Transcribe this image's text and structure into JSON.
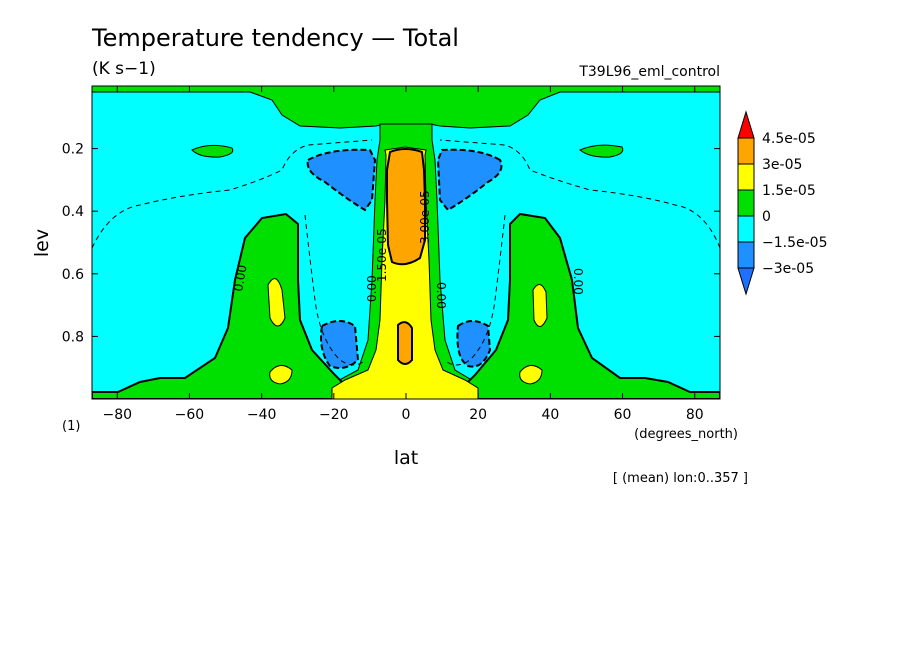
{
  "header": {
    "title": "Temperature tendency — Total",
    "units": "(K s−1)",
    "run_name": "T39L96_eml_control"
  },
  "footer": {
    "mean_note": "[ (mean) lon:0..357 ]",
    "lev_unit_note": "(1)",
    "x_unit_note": "(degrees_north)"
  },
  "contour_labels": [
    "0.00",
    "0.00",
    "0.00",
    "0.00",
    "1.50e-05",
    "3.00e-05"
  ],
  "chart_data": {
    "type": "heatmap",
    "title": "Temperature tendency — Total",
    "xlabel": "lat",
    "ylabel": "lev",
    "xlim": [
      -87,
      87
    ],
    "ylim": [
      1.0,
      0.0
    ],
    "x_ticks": [
      -80,
      -60,
      -40,
      -20,
      0,
      20,
      40,
      60,
      80
    ],
    "x_tick_labels": [
      "−80",
      "−60",
      "−40",
      "−20",
      "0",
      "20",
      "40",
      "60",
      "80"
    ],
    "y_ticks": [
      0.2,
      0.4,
      0.6,
      0.8
    ],
    "y_tick_labels": [
      "0.2",
      "0.4",
      "0.6",
      "0.8"
    ],
    "legend": {
      "placement": "right",
      "labels": [
        "4.5e-05",
        "3e-05",
        "1.5e-05",
        "0",
        "−1.5e-05",
        "−3e-05"
      ],
      "colors": [
        "#ff0000",
        "#ffa500",
        "#ffff00",
        "#00e000",
        "#00ffff",
        "#1e90ff",
        "#1e70ff"
      ]
    },
    "field_colors": {
      "very_negative": "#1e90ff",
      "negative": "#00ffff",
      "positive": "#00e000",
      "high": "#ffff00",
      "very_high": "#ffa500"
    }
  }
}
